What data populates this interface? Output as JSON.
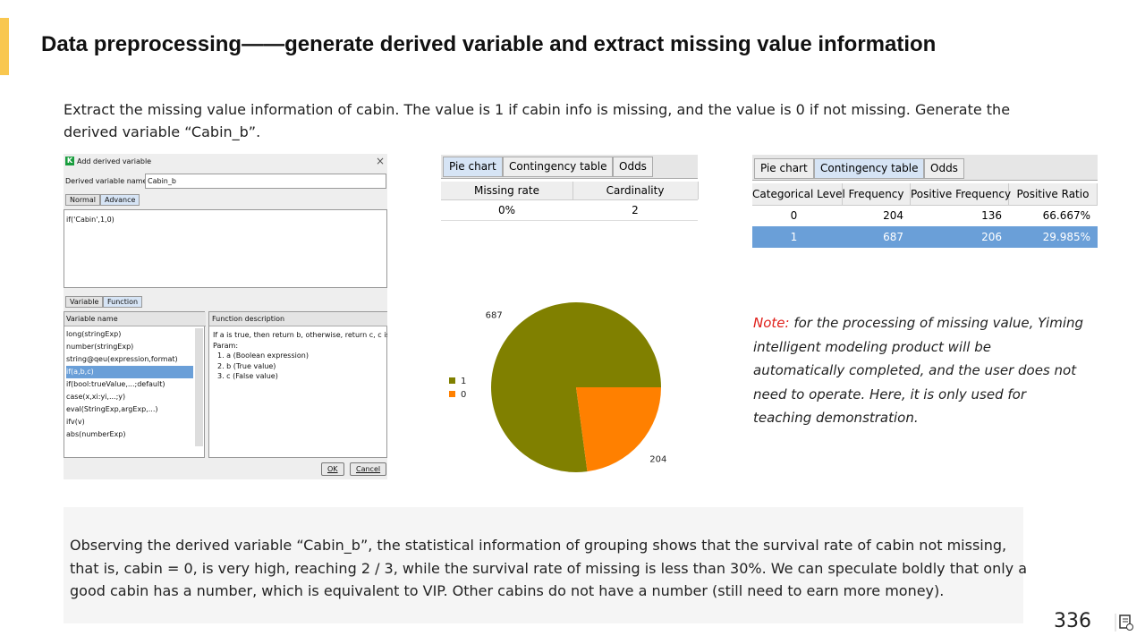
{
  "header": {
    "title": "Data preprocessing——generate derived variable and extract missing value information"
  },
  "intro": "Extract the missing value information of cabin. The value is 1 if cabin info is missing, and the value is 0 if  not missing. Generate the derived variable  “Cabin_b”.",
  "dialog": {
    "title": "Add derived variable",
    "name_label": "Derived variable name",
    "name_value": "Cabin_b",
    "tabs": [
      "Normal",
      "Advance"
    ],
    "expression": "if('Cabin',1,0)",
    "lower_tabs": [
      "Variable",
      "Function"
    ],
    "list_header": "Variable name",
    "functions": [
      "long(stringExp)",
      "number(stringExp)",
      "string@qeu(expression,format)",
      "if(a,b,c)",
      "if(bool:trueValue,...;default)",
      "case(x,xi:yi,...;y)",
      "eval(StringExp,argExp,...)",
      "ifv(v)",
      "abs(numberExp)"
    ],
    "desc_header": "Function description",
    "description": [
      "If a is true, then return b, otherwise, return c, c is null by default.",
      "Param:",
      "1. a (Boolean expression)",
      "2. b  (True value)",
      "3. c (False value)"
    ],
    "buttons": [
      "OK",
      "Cancel"
    ]
  },
  "summary_panel": {
    "tabs": [
      "Pie chart",
      "Contingency table",
      "Odds"
    ],
    "columns": [
      "Missing rate",
      "Cardinality"
    ],
    "row": [
      "0%",
      "2"
    ]
  },
  "chart_data": {
    "type": "pie",
    "categories": [
      "1",
      "0"
    ],
    "values": [
      687,
      204
    ],
    "colors": [
      "#808000",
      "#ff8000"
    ],
    "legend": "left"
  },
  "contingency_panel": {
    "tabs": [
      "Pie chart",
      "Contingency table",
      "Odds"
    ],
    "columns": [
      "Categorical Level",
      "Frequency",
      "Positive Frequency",
      "Positive Ratio"
    ],
    "rows": [
      [
        "0",
        "204",
        "136",
        "66.667%"
      ],
      [
        "1",
        "687",
        "206",
        "29.985%"
      ]
    ]
  },
  "note": {
    "label": "Note:",
    "text": " for the processing of missing value, Yiming intelligent modeling product will be automatically completed, and the user does not need to operate. Here, it is only used for teaching demonstration."
  },
  "conclusion": "Observing the derived variable  “Cabin_b”, the statistical information of grouping shows that the survival rate of cabin not missing, that is, cabin = 0, is very high, reaching 2 / 3, while the survival rate of missing is less than 30%. We can speculate boldly that only a good cabin has a number, which is equivalent to VIP. Other cabins do not have a number (still need to earn more money).",
  "page_number": "336"
}
